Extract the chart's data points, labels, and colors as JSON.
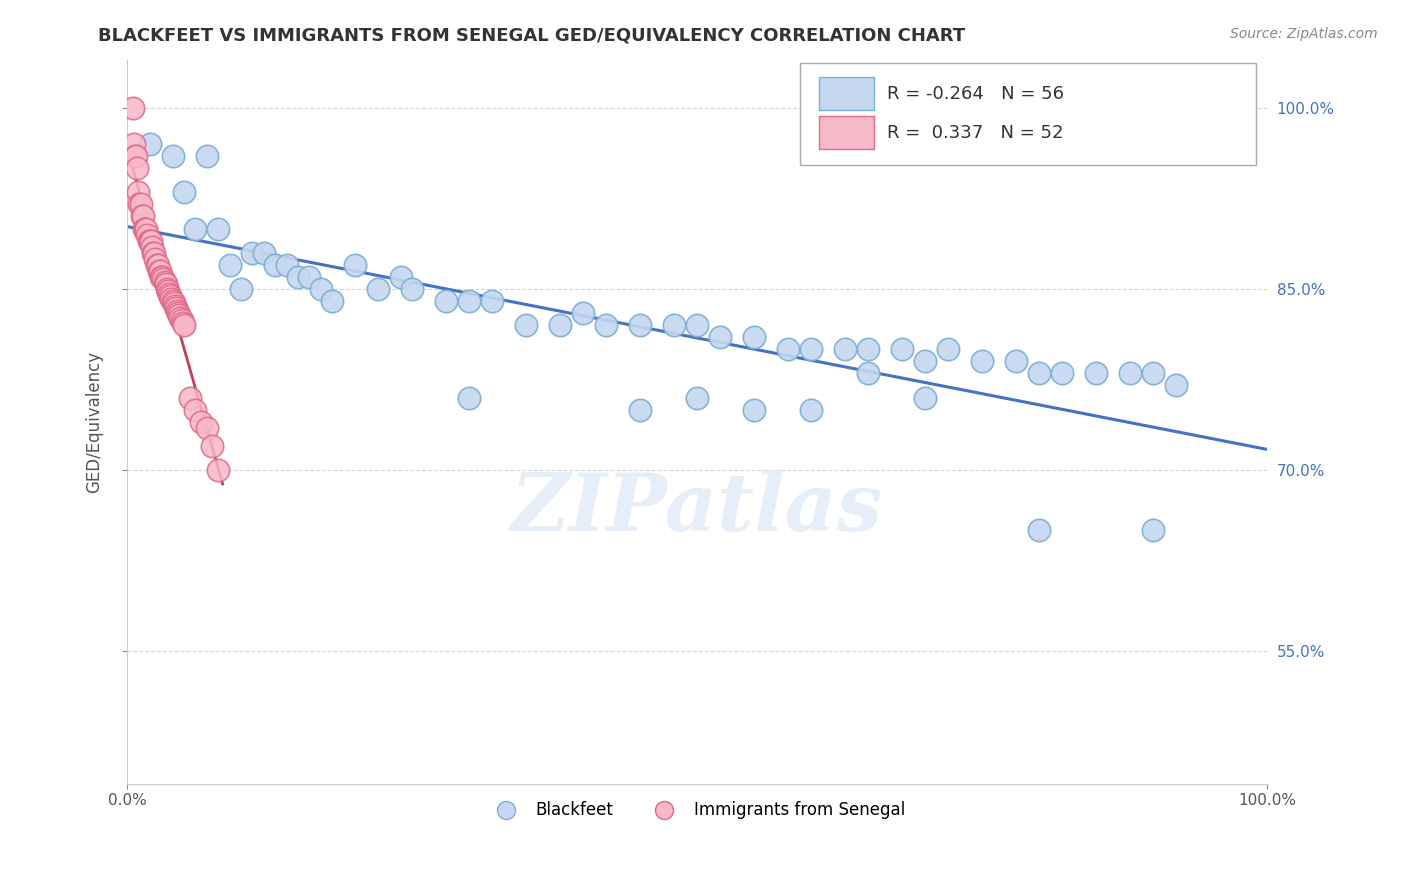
{
  "title": "BLACKFEET VS IMMIGRANTS FROM SENEGAL GED/EQUIVALENCY CORRELATION CHART",
  "source_text": "Source: ZipAtlas.com",
  "ylabel": "GED/Equivalency",
  "watermark": "ZIPatlas",
  "xlim": [
    0.0,
    1.0
  ],
  "ylim": [
    0.44,
    1.04
  ],
  "ytick_labels": [
    "55.0%",
    "70.0%",
    "85.0%",
    "100.0%"
  ],
  "ytick_values": [
    0.55,
    0.7,
    0.85,
    1.0
  ],
  "xtick_labels": [
    "0.0%",
    "100.0%"
  ],
  "xtick_values": [
    0.0,
    1.0
  ],
  "grid_color": "#cccccc",
  "bg_color": "#ffffff",
  "blackfeet_color": "#c5d8f0",
  "blackfeet_edge_color": "#7aafd4",
  "senegal_color": "#f7b8c8",
  "senegal_edge_color": "#e06888",
  "blackfeet_R": -0.264,
  "blackfeet_N": 56,
  "senegal_R": 0.337,
  "senegal_N": 52,
  "blackfeet_line_color": "#4472c4",
  "senegal_line_color": "#c0405a",
  "legend_box_blue": "#c5d8f0",
  "legend_box_pink": "#f7b8c8",
  "blackfeet_x": [
    0.02,
    0.04,
    0.05,
    0.06,
    0.07,
    0.08,
    0.09,
    0.1,
    0.11,
    0.12,
    0.13,
    0.14,
    0.15,
    0.16,
    0.17,
    0.18,
    0.2,
    0.22,
    0.24,
    0.25,
    0.28,
    0.3,
    0.32,
    0.35,
    0.38,
    0.4,
    0.42,
    0.45,
    0.48,
    0.5,
    0.52,
    0.55,
    0.58,
    0.6,
    0.63,
    0.65,
    0.68,
    0.7,
    0.72,
    0.75,
    0.78,
    0.8,
    0.82,
    0.85,
    0.88,
    0.9,
    0.92,
    0.3,
    0.45,
    0.5,
    0.55,
    0.6,
    0.65,
    0.7,
    0.8,
    0.9
  ],
  "blackfeet_y": [
    0.97,
    0.96,
    0.93,
    0.9,
    0.96,
    0.9,
    0.87,
    0.85,
    0.88,
    0.88,
    0.87,
    0.87,
    0.86,
    0.86,
    0.85,
    0.84,
    0.87,
    0.85,
    0.86,
    0.85,
    0.84,
    0.84,
    0.84,
    0.82,
    0.82,
    0.83,
    0.82,
    0.82,
    0.82,
    0.82,
    0.81,
    0.81,
    0.8,
    0.8,
    0.8,
    0.8,
    0.8,
    0.79,
    0.8,
    0.79,
    0.79,
    0.78,
    0.78,
    0.78,
    0.78,
    0.78,
    0.77,
    0.76,
    0.75,
    0.76,
    0.75,
    0.75,
    0.78,
    0.76,
    0.65,
    0.65
  ],
  "senegal_x": [
    0.005,
    0.006,
    0.007,
    0.008,
    0.009,
    0.01,
    0.011,
    0.012,
    0.013,
    0.014,
    0.015,
    0.016,
    0.017,
    0.018,
    0.019,
    0.02,
    0.021,
    0.022,
    0.023,
    0.024,
    0.025,
    0.026,
    0.027,
    0.028,
    0.029,
    0.03,
    0.031,
    0.032,
    0.033,
    0.034,
    0.035,
    0.036,
    0.037,
    0.038,
    0.039,
    0.04,
    0.041,
    0.042,
    0.043,
    0.044,
    0.045,
    0.046,
    0.047,
    0.048,
    0.049,
    0.05,
    0.055,
    0.06,
    0.065,
    0.07,
    0.075,
    0.08
  ],
  "senegal_y": [
    1.0,
    0.97,
    0.96,
    0.96,
    0.95,
    0.93,
    0.92,
    0.92,
    0.91,
    0.91,
    0.9,
    0.9,
    0.9,
    0.895,
    0.89,
    0.89,
    0.89,
    0.885,
    0.88,
    0.88,
    0.875,
    0.87,
    0.87,
    0.865,
    0.865,
    0.86,
    0.86,
    0.858,
    0.856,
    0.854,
    0.85,
    0.848,
    0.846,
    0.844,
    0.842,
    0.84,
    0.838,
    0.836,
    0.834,
    0.832,
    0.83,
    0.828,
    0.826,
    0.824,
    0.822,
    0.82,
    0.76,
    0.75,
    0.74,
    0.735,
    0.72,
    0.7
  ]
}
